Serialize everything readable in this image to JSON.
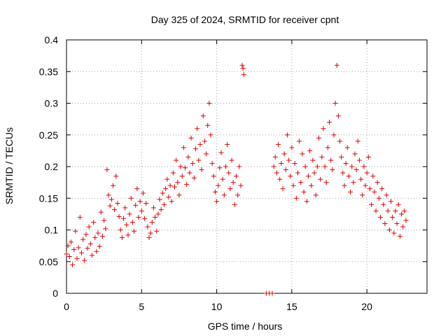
{
  "chart_data": {
    "type": "scatter",
    "title": "Day 325 of 2024, SRMTID for receiver cpnt",
    "xlabel": "GPS time / hours",
    "ylabel": "SRMTID / TECUs",
    "xlim": [
      0,
      24
    ],
    "ylim": [
      0,
      0.4
    ],
    "x_ticks": [
      "0",
      "5",
      "10",
      "15",
      "20"
    ],
    "y_ticks": [
      "0",
      "0.05",
      "0.1",
      "0.15",
      "0.2",
      "0.25",
      "0.3",
      "0.35",
      "0.4"
    ],
    "grid": true,
    "marker": "+",
    "color": "#e00000",
    "series": [
      {
        "points": [
          [
            0.0,
            0.062
          ],
          [
            0.1,
            0.075
          ],
          [
            0.2,
            0.058
          ],
          [
            0.3,
            0.081
          ],
          [
            0.4,
            0.045
          ],
          [
            0.5,
            0.069
          ],
          [
            0.6,
            0.098
          ],
          [
            0.7,
            0.055
          ],
          [
            0.8,
            0.072
          ],
          [
            0.9,
            0.12
          ],
          [
            1.0,
            0.064
          ],
          [
            1.1,
            0.085
          ],
          [
            1.2,
            0.052
          ],
          [
            1.3,
            0.093
          ],
          [
            1.4,
            0.071
          ],
          [
            1.5,
            0.105
          ],
          [
            1.6,
            0.078
          ],
          [
            1.7,
            0.06
          ],
          [
            1.8,
            0.112
          ],
          [
            1.9,
            0.088
          ],
          [
            2.0,
            0.066
          ],
          [
            2.1,
            0.095
          ],
          [
            2.2,
            0.074
          ],
          [
            2.3,
            0.128
          ],
          [
            2.4,
            0.09
          ],
          [
            2.5,
            0.115
          ],
          [
            2.6,
            0.102
          ],
          [
            2.7,
            0.195
          ],
          [
            2.8,
            0.155
          ],
          [
            2.9,
            0.138
          ],
          [
            3.0,
            0.148
          ],
          [
            3.1,
            0.17
          ],
          [
            3.2,
            0.132
          ],
          [
            3.3,
            0.185
          ],
          [
            3.4,
            0.142
          ],
          [
            3.5,
            0.121
          ],
          [
            3.6,
            0.1
          ],
          [
            3.7,
            0.088
          ],
          [
            3.8,
            0.118
          ],
          [
            3.9,
            0.135
          ],
          [
            4.0,
            0.108
          ],
          [
            4.1,
            0.092
          ],
          [
            4.2,
            0.125
          ],
          [
            4.3,
            0.15
          ],
          [
            4.4,
            0.112
          ],
          [
            4.5,
            0.098
          ],
          [
            4.6,
            0.139
          ],
          [
            4.7,
            0.165
          ],
          [
            4.8,
            0.12
          ],
          [
            4.9,
            0.145
          ],
          [
            5.0,
            0.13
          ],
          [
            5.1,
            0.158
          ],
          [
            5.2,
            0.118
          ],
          [
            5.3,
            0.142
          ],
          [
            5.4,
            0.105
          ],
          [
            5.5,
            0.088
          ],
          [
            5.6,
            0.095
          ],
          [
            5.7,
            0.112
          ],
          [
            5.8,
            0.135
          ],
          [
            5.9,
            0.12
          ],
          [
            6.0,
            0.098
          ],
          [
            6.1,
            0.125
          ],
          [
            6.2,
            0.148
          ],
          [
            6.3,
            0.132
          ],
          [
            6.4,
            0.158
          ],
          [
            6.5,
            0.14
          ],
          [
            6.6,
            0.165
          ],
          [
            6.7,
            0.18
          ],
          [
            6.8,
            0.152
          ],
          [
            6.9,
            0.17
          ],
          [
            7.0,
            0.145
          ],
          [
            7.1,
            0.19
          ],
          [
            7.2,
            0.168
          ],
          [
            7.3,
            0.21
          ],
          [
            7.4,
            0.175
          ],
          [
            7.5,
            0.155
          ],
          [
            7.6,
            0.2
          ],
          [
            7.7,
            0.185
          ],
          [
            7.8,
            0.23
          ],
          [
            7.9,
            0.198
          ],
          [
            8.0,
            0.172
          ],
          [
            8.1,
            0.215
          ],
          [
            8.2,
            0.19
          ],
          [
            8.3,
            0.245
          ],
          [
            8.4,
            0.205
          ],
          [
            8.5,
            0.182
          ],
          [
            8.6,
            0.228
          ],
          [
            8.7,
            0.26
          ],
          [
            8.8,
            0.21
          ],
          [
            8.9,
            0.235
          ],
          [
            9.0,
            0.195
          ],
          [
            9.1,
            0.28
          ],
          [
            9.2,
            0.24
          ],
          [
            9.3,
            0.22
          ],
          [
            9.4,
            0.265
          ],
          [
            9.5,
            0.3
          ],
          [
            9.6,
            0.25
          ],
          [
            9.7,
            0.205
          ],
          [
            9.8,
            0.185
          ],
          [
            9.9,
            0.16
          ],
          [
            10.0,
            0.145
          ],
          [
            10.1,
            0.17
          ],
          [
            10.2,
            0.198
          ],
          [
            10.3,
            0.222
          ],
          [
            10.4,
            0.18
          ],
          [
            10.5,
            0.155
          ],
          [
            10.6,
            0.2
          ],
          [
            10.7,
            0.235
          ],
          [
            10.8,
            0.19
          ],
          [
            10.9,
            0.165
          ],
          [
            11.0,
            0.21
          ],
          [
            11.1,
            0.175
          ],
          [
            11.2,
            0.14
          ],
          [
            11.3,
            0.185
          ],
          [
            11.4,
            0.155
          ],
          [
            11.5,
            0.2
          ],
          [
            11.6,
            0.17
          ],
          [
            11.7,
            0.36
          ],
          [
            11.75,
            0.355
          ],
          [
            11.8,
            0.345
          ],
          [
            13.3,
            0.0
          ],
          [
            13.5,
            0.0
          ],
          [
            13.7,
            0.0
          ],
          [
            13.8,
            0.2
          ],
          [
            13.9,
            0.215
          ],
          [
            14.0,
            0.19
          ],
          [
            14.1,
            0.235
          ],
          [
            14.2,
            0.18
          ],
          [
            14.3,
            0.205
          ],
          [
            14.4,
            0.165
          ],
          [
            14.5,
            0.22
          ],
          [
            14.6,
            0.195
          ],
          [
            14.7,
            0.25
          ],
          [
            14.8,
            0.21
          ],
          [
            14.9,
            0.185
          ],
          [
            15.0,
            0.23
          ],
          [
            15.1,
            0.17
          ],
          [
            15.2,
            0.205
          ],
          [
            15.3,
            0.15
          ],
          [
            15.4,
            0.19
          ],
          [
            15.5,
            0.24
          ],
          [
            15.6,
            0.175
          ],
          [
            15.7,
            0.22
          ],
          [
            15.8,
            0.16
          ],
          [
            15.9,
            0.2
          ],
          [
            16.0,
            0.145
          ],
          [
            16.1,
            0.185
          ],
          [
            16.2,
            0.225
          ],
          [
            16.3,
            0.17
          ],
          [
            16.4,
            0.21
          ],
          [
            16.5,
            0.19
          ],
          [
            16.6,
            0.155
          ],
          [
            16.7,
            0.2
          ],
          [
            16.8,
            0.245
          ],
          [
            16.9,
            0.18
          ],
          [
            17.0,
            0.215
          ],
          [
            17.1,
            0.26
          ],
          [
            17.2,
            0.2
          ],
          [
            17.3,
            0.175
          ],
          [
            17.4,
            0.23
          ],
          [
            17.5,
            0.27
          ],
          [
            17.6,
            0.21
          ],
          [
            17.7,
            0.195
          ],
          [
            17.8,
            0.25
          ],
          [
            17.9,
            0.3
          ],
          [
            18.0,
            0.36
          ],
          [
            18.1,
            0.28
          ],
          [
            18.2,
            0.24
          ],
          [
            18.3,
            0.215
          ],
          [
            18.4,
            0.19
          ],
          [
            18.5,
            0.17
          ],
          [
            18.6,
            0.205
          ],
          [
            18.7,
            0.23
          ],
          [
            18.8,
            0.185
          ],
          [
            18.9,
            0.16
          ],
          [
            19.0,
            0.2
          ],
          [
            19.1,
            0.175
          ],
          [
            19.2,
            0.22
          ],
          [
            19.3,
            0.195
          ],
          [
            19.4,
            0.24
          ],
          [
            19.5,
            0.21
          ],
          [
            19.6,
            0.18
          ],
          [
            19.7,
            0.155
          ],
          [
            19.8,
            0.2
          ],
          [
            19.9,
            0.17
          ],
          [
            20.0,
            0.19
          ],
          [
            20.1,
            0.215
          ],
          [
            20.2,
            0.165
          ],
          [
            20.3,
            0.14
          ],
          [
            20.4,
            0.185
          ],
          [
            20.5,
            0.16
          ],
          [
            20.6,
            0.13
          ],
          [
            20.7,
            0.175
          ],
          [
            20.8,
            0.15
          ],
          [
            20.9,
            0.12
          ],
          [
            21.0,
            0.165
          ],
          [
            21.1,
            0.14
          ],
          [
            21.2,
            0.11
          ],
          [
            21.3,
            0.155
          ],
          [
            21.4,
            0.13
          ],
          [
            21.5,
            0.1
          ],
          [
            21.6,
            0.145
          ],
          [
            21.7,
            0.12
          ],
          [
            21.8,
            0.095
          ],
          [
            21.9,
            0.13
          ],
          [
            22.0,
            0.11
          ],
          [
            22.1,
            0.14
          ],
          [
            22.2,
            0.09
          ],
          [
            22.3,
            0.125
          ],
          [
            22.4,
            0.105
          ],
          [
            22.5,
            0.13
          ],
          [
            22.6,
            0.115
          ]
        ]
      }
    ]
  }
}
